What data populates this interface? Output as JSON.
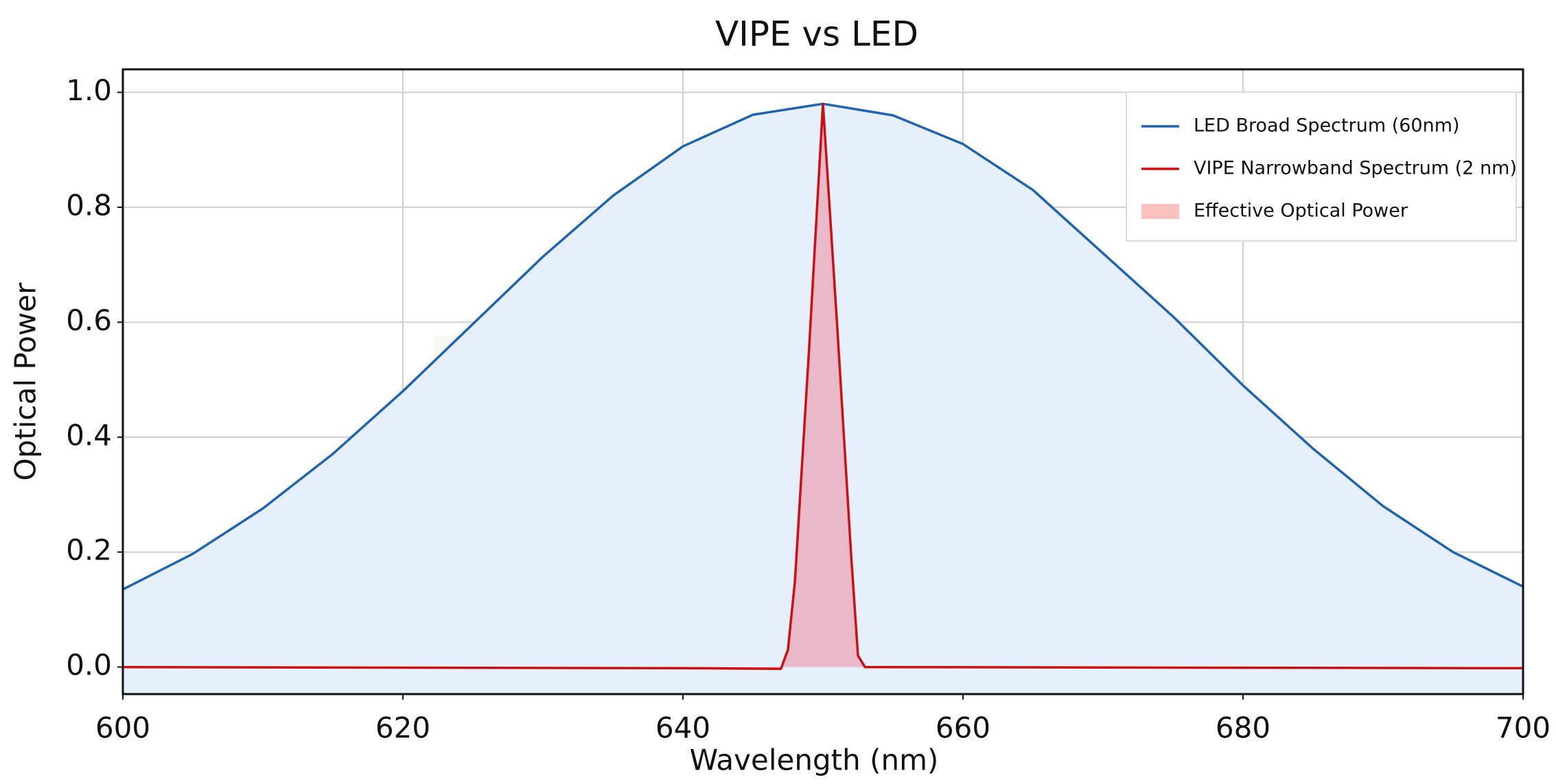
{
  "chart_data": {
    "type": "line",
    "title": "VIPE vs LED",
    "xlabel": "Wavelength (nm)",
    "ylabel": "Optical Power",
    "watermark": "RAYSEES",
    "xlim": [
      600,
      700
    ],
    "xticks": [
      600,
      620,
      640,
      660,
      680,
      700
    ],
    "ylim": [
      -0.047,
      1.04
    ],
    "yticks": [
      {
        "value": 0,
        "label": "0.0"
      },
      0.2,
      0.4,
      0.6,
      0.8,
      {
        "value": 1,
        "label": "1.0"
      }
    ],
    "grid": true,
    "legend": "upper right",
    "series": [
      {
        "name": "LED Broad Spectrum (60nm)",
        "color": "#1f64ad",
        "fill_color": "#e6effc",
        "x": [
          600,
          605,
          610,
          615,
          620,
          625,
          630,
          635,
          640,
          645,
          650,
          655,
          660,
          665,
          670,
          675,
          680,
          685,
          690,
          695,
          700
        ],
        "values": [
          0.135,
          0.197,
          0.276,
          0.371,
          0.48,
          0.597,
          0.714,
          0.82,
          0.906,
          0.961,
          0.98,
          0.96,
          0.91,
          0.83,
          0.72,
          0.61,
          0.49,
          0.38,
          0.28,
          0.2,
          0.14
        ]
      },
      {
        "name": "VIPE Narrowband Spectrum (2 nm)",
        "color": "#cc1010",
        "fill_color": "rgba(240,120,140,0.45)",
        "fill_label": "Effective Optical Power",
        "x": [
          600,
          620,
          640,
          647,
          647.5,
          648,
          649,
          650,
          651,
          652,
          652.5,
          653,
          700
        ],
        "values": [
          0,
          -0.001,
          -0.002,
          -0.003,
          0.03,
          0.15,
          0.55,
          0.98,
          0.6,
          0.2,
          0.02,
          0.0,
          -0.002
        ]
      }
    ]
  }
}
